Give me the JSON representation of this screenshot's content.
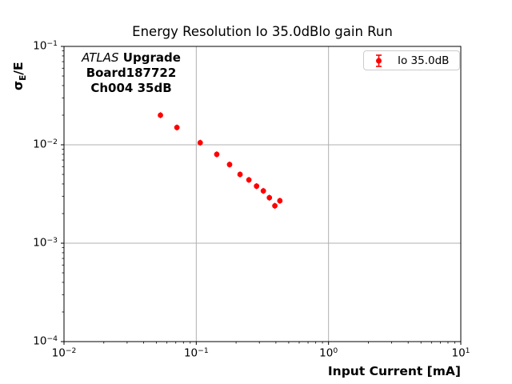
{
  "figure": {
    "title": "Energy Resolution Io 35.0dBlo gain Run",
    "xlabel": "Input Current [mA]",
    "ylabel": {
      "sigma": "σ",
      "sub": "E",
      "rest": "/E"
    },
    "annotation": {
      "line1_italic": "ATLAS",
      "line1_bold": " Upgrade",
      "line2": "Board187722",
      "line3": "Ch004 35dB"
    },
    "legend": {
      "label": "Io 35.0dB"
    }
  },
  "chart_data": {
    "type": "scatter",
    "title": "Energy Resolution Io 35.0dBlo gain Run",
    "xlabel": "Input Current [mA]",
    "ylabel": "σ_E/E",
    "x_scale": "log",
    "y_scale": "log",
    "xlim": [
      0.01,
      10
    ],
    "ylim": [
      0.0001,
      0.1
    ],
    "grid": true,
    "grid_color": "#b0b0b0",
    "legend_position": "upper right",
    "annotations": [
      "ATLAS Upgrade",
      "Board187722",
      "Ch004 35dB"
    ],
    "x_tick_exponents": [
      -2,
      -1,
      0,
      1
    ],
    "y_tick_exponents": [
      -1,
      -2,
      -3,
      -4
    ],
    "series": [
      {
        "name": "Io 35.0dB",
        "color": "#ff0000",
        "marker": "errorbar-dot",
        "x": [
          0.0536,
          0.0714,
          0.1071,
          0.1429,
          0.1786,
          0.2143,
          0.25,
          0.2857,
          0.3214,
          0.3571,
          0.3929,
          0.4286
        ],
        "y": [
          0.02,
          0.015,
          0.0105,
          0.008,
          0.0063,
          0.005,
          0.0044,
          0.0038,
          0.0034,
          0.0029,
          0.0024,
          0.0027
        ]
      }
    ]
  }
}
